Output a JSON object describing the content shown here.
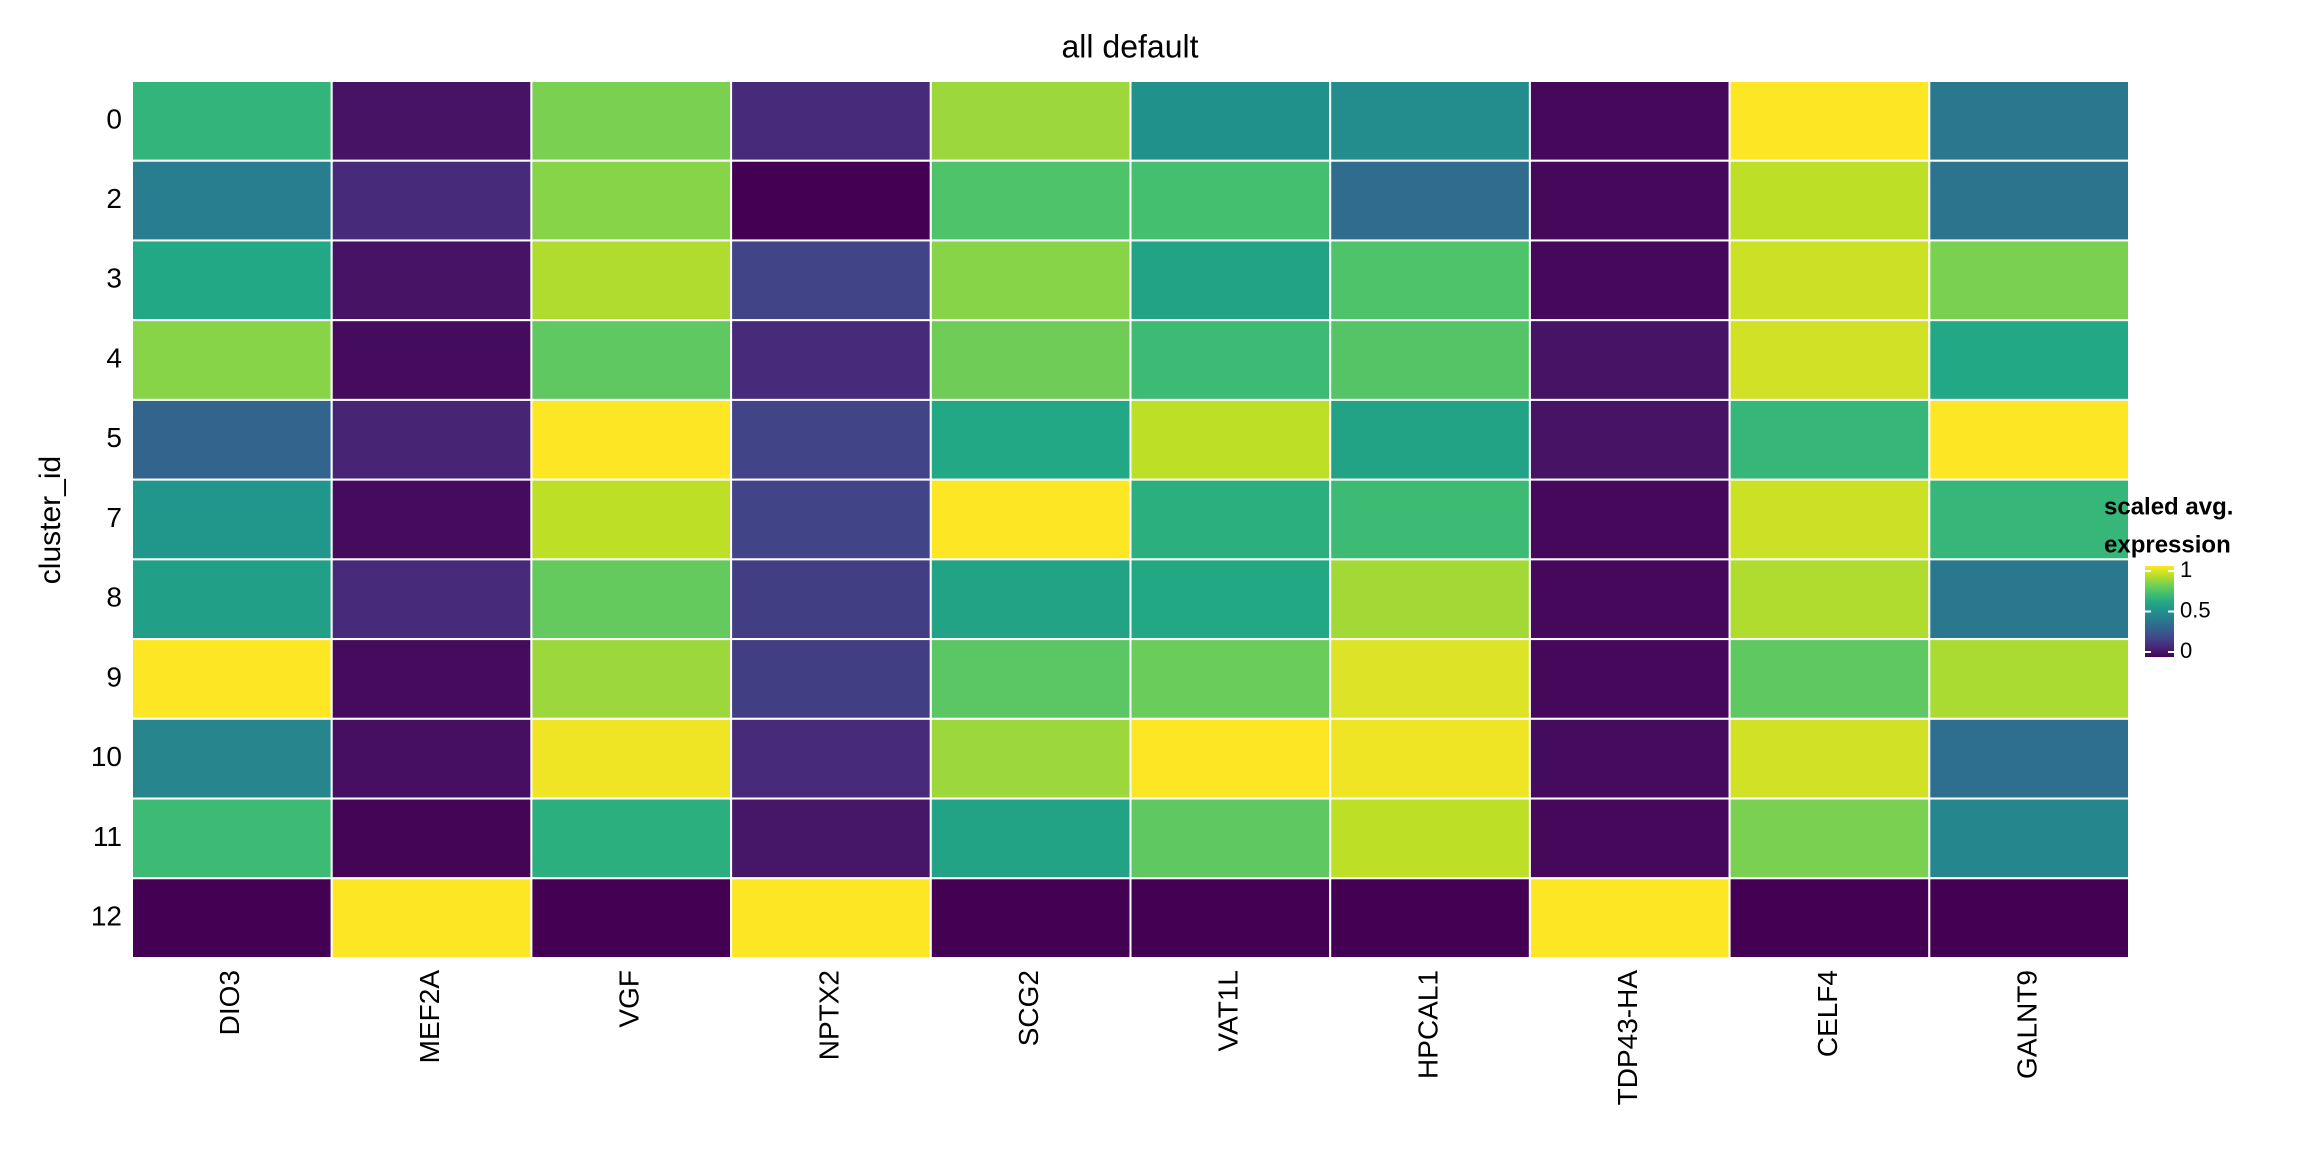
{
  "chart_data": {
    "type": "heatmap",
    "title": "all default",
    "y_label": "cluster_id",
    "x": [
      "DIO3",
      "MEF2A",
      "VGF",
      "NPTX2",
      "SCG2",
      "VAT1L",
      "HPCAL1",
      "TDP43-HA",
      "CELF4",
      "GALNT9"
    ],
    "y": [
      "0",
      "2",
      "3",
      "4",
      "5",
      "7",
      "8",
      "9",
      "10",
      "11",
      "12"
    ],
    "z": [
      [
        0.65,
        0.05,
        0.8,
        0.12,
        0.85,
        0.5,
        0.48,
        0.02,
        1,
        0.4
      ],
      [
        0.42,
        0.12,
        0.82,
        0,
        0.72,
        0.7,
        0.35,
        0.02,
        0.9,
        0.38
      ],
      [
        0.6,
        0.05,
        0.88,
        0.2,
        0.82,
        0.58,
        0.72,
        0.02,
        0.92,
        0.8
      ],
      [
        0.82,
        0.03,
        0.75,
        0.12,
        0.78,
        0.68,
        0.73,
        0.05,
        0.93,
        0.6
      ],
      [
        0.32,
        0.1,
        1,
        0.2,
        0.6,
        0.9,
        0.58,
        0.05,
        0.66,
        1
      ],
      [
        0.52,
        0.03,
        0.9,
        0.2,
        1,
        0.63,
        0.68,
        0.02,
        0.92,
        0.66
      ],
      [
        0.56,
        0.12,
        0.76,
        0.18,
        0.58,
        0.6,
        0.86,
        0.02,
        0.88,
        0.4
      ],
      [
        1,
        0.03,
        0.85,
        0.18,
        0.74,
        0.77,
        0.95,
        0.02,
        0.75,
        0.87
      ],
      [
        0.45,
        0.04,
        0.98,
        0.12,
        0.85,
        1,
        0.98,
        0.03,
        0.93,
        0.36
      ],
      [
        0.68,
        0.01,
        0.63,
        0.06,
        0.58,
        0.75,
        0.9,
        0.02,
        0.8,
        0.46
      ],
      [
        0,
        1,
        0,
        1,
        0,
        0,
        0,
        1,
        0,
        0
      ]
    ],
    "zlim": [
      0,
      1
    ],
    "colorscale": [
      "#440154",
      "#482475",
      "#414487",
      "#355f8d",
      "#2a788e",
      "#21918c",
      "#22a884",
      "#44bf70",
      "#7ad151",
      "#bddf26",
      "#fde725"
    ],
    "legend_title": [
      "scaled avg.",
      "expression"
    ],
    "colorbar_ticks": [
      0,
      0.5,
      1
    ]
  }
}
